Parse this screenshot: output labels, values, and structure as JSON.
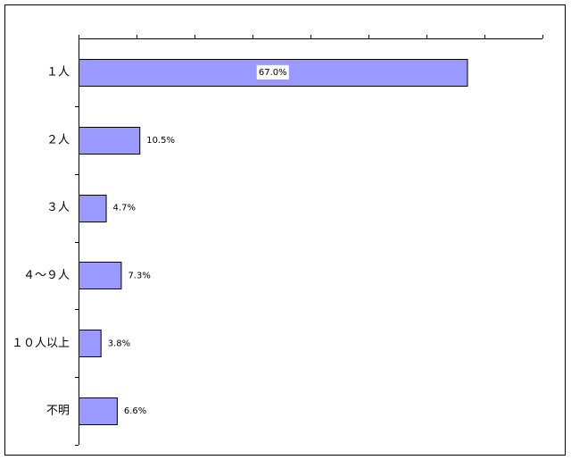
{
  "chart_data": {
    "type": "bar",
    "orientation": "horizontal",
    "categories": [
      "１人",
      "２人",
      "３人",
      "４～９人",
      "１０人以上",
      "不明"
    ],
    "values": [
      67.0,
      10.5,
      4.7,
      7.3,
      3.8,
      6.6
    ],
    "value_labels": [
      "67.0%",
      "10.5%",
      "4.7%",
      "7.3%",
      "3.8%",
      "6.6%"
    ],
    "color": "#9999ff",
    "xlim": [
      0,
      80
    ],
    "xticks": [
      0,
      10,
      20,
      30,
      40,
      50,
      60,
      70,
      80
    ]
  }
}
